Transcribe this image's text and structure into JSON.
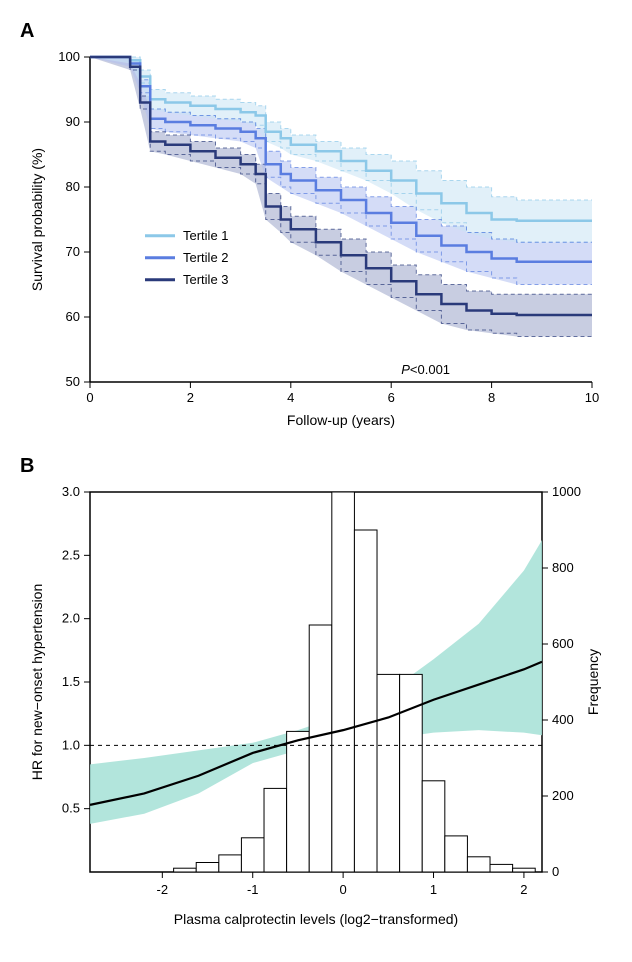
{
  "panelA": {
    "label": "A",
    "type": "survival-curve",
    "xlabel": "Follow-up (years)",
    "ylabel": "Survival probability (%)",
    "xlim": [
      0,
      10
    ],
    "ylim": [
      50,
      100
    ],
    "xticks": [
      0,
      2,
      4,
      6,
      8,
      10
    ],
    "yticks": [
      50,
      60,
      70,
      80,
      90,
      100
    ],
    "pvalue_text": "P<0.001",
    "legend": [
      {
        "label": "Tertile 1",
        "color": "#8cc8e8"
      },
      {
        "label": "Tertile 2",
        "color": "#5a7de0"
      },
      {
        "label": "Tertile 3",
        "color": "#2a3a7a"
      }
    ],
    "series": [
      {
        "name": "tertile1",
        "color": "#8cc8e8",
        "ci_color": "#c8e4f4",
        "line": [
          [
            0,
            100
          ],
          [
            0.8,
            99.5
          ],
          [
            1.0,
            97
          ],
          [
            1.2,
            93.5
          ],
          [
            1.5,
            93
          ],
          [
            2.0,
            92.5
          ],
          [
            2.5,
            92
          ],
          [
            3.0,
            91.5
          ],
          [
            3.3,
            91
          ],
          [
            3.5,
            88.5
          ],
          [
            3.8,
            87.5
          ],
          [
            4.0,
            86.5
          ],
          [
            4.5,
            85.5
          ],
          [
            5.0,
            84
          ],
          [
            5.5,
            82.5
          ],
          [
            6.0,
            81
          ],
          [
            6.5,
            79
          ],
          [
            7.0,
            77.5
          ],
          [
            7.5,
            76
          ],
          [
            8.0,
            75
          ],
          [
            8.5,
            74.8
          ],
          [
            10,
            74.8
          ]
        ],
        "ci_upper": [
          [
            0,
            100
          ],
          [
            0.8,
            100
          ],
          [
            1.0,
            98
          ],
          [
            1.2,
            95
          ],
          [
            1.5,
            94.5
          ],
          [
            2.0,
            94
          ],
          [
            2.5,
            93.5
          ],
          [
            3.0,
            93
          ],
          [
            3.3,
            92.5
          ],
          [
            3.5,
            90
          ],
          [
            3.8,
            89
          ],
          [
            4.0,
            88
          ],
          [
            4.5,
            87
          ],
          [
            5.0,
            86
          ],
          [
            5.5,
            85
          ],
          [
            6.0,
            84
          ],
          [
            6.5,
            82.5
          ],
          [
            7.0,
            81
          ],
          [
            7.5,
            80
          ],
          [
            8.0,
            78.5
          ],
          [
            8.5,
            78
          ],
          [
            10,
            78
          ]
        ],
        "ci_lower": [
          [
            0,
            100
          ],
          [
            0.8,
            99
          ],
          [
            1.0,
            96
          ],
          [
            1.2,
            92
          ],
          [
            1.5,
            91.5
          ],
          [
            2.0,
            91
          ],
          [
            2.5,
            90.5
          ],
          [
            3.0,
            90
          ],
          [
            3.3,
            89.5
          ],
          [
            3.5,
            87
          ],
          [
            3.8,
            86
          ],
          [
            4.0,
            85
          ],
          [
            4.5,
            84
          ],
          [
            5.0,
            82.5
          ],
          [
            5.5,
            81
          ],
          [
            6.0,
            79
          ],
          [
            6.5,
            76.5
          ],
          [
            7.0,
            74.5
          ],
          [
            7.5,
            73
          ],
          [
            8.0,
            72
          ],
          [
            8.5,
            71.5
          ],
          [
            10,
            71.5
          ]
        ]
      },
      {
        "name": "tertile2",
        "color": "#5a7de0",
        "ci_color": "#b0c0f0",
        "line": [
          [
            0,
            100
          ],
          [
            0.8,
            99
          ],
          [
            1.0,
            95.5
          ],
          [
            1.2,
            90.5
          ],
          [
            1.5,
            90
          ],
          [
            2.0,
            89.5
          ],
          [
            2.5,
            89
          ],
          [
            3.0,
            88.5
          ],
          [
            3.3,
            87.5
          ],
          [
            3.5,
            83.5
          ],
          [
            3.8,
            82
          ],
          [
            4.0,
            81
          ],
          [
            4.5,
            79.5
          ],
          [
            5.0,
            78
          ],
          [
            5.5,
            76
          ],
          [
            6.0,
            74.5
          ],
          [
            6.5,
            72.5
          ],
          [
            7.0,
            71
          ],
          [
            7.5,
            70
          ],
          [
            8.0,
            69
          ],
          [
            8.5,
            68.5
          ],
          [
            10,
            68.5
          ]
        ],
        "ci_upper": [
          [
            0,
            100
          ],
          [
            0.8,
            99.5
          ],
          [
            1.0,
            96.5
          ],
          [
            1.2,
            92
          ],
          [
            1.5,
            91.5
          ],
          [
            2.0,
            91
          ],
          [
            2.5,
            90.5
          ],
          [
            3.0,
            90
          ],
          [
            3.3,
            89
          ],
          [
            3.5,
            85.5
          ],
          [
            3.8,
            84
          ],
          [
            4.0,
            83
          ],
          [
            4.5,
            81.5
          ],
          [
            5.0,
            80
          ],
          [
            5.5,
            78.5
          ],
          [
            6.0,
            77
          ],
          [
            6.5,
            75
          ],
          [
            7.0,
            74
          ],
          [
            7.5,
            73
          ],
          [
            8.0,
            72
          ],
          [
            8.5,
            71.5
          ],
          [
            10,
            71.5
          ]
        ],
        "ci_lower": [
          [
            0,
            100
          ],
          [
            0.8,
            98.5
          ],
          [
            1.0,
            94.5
          ],
          [
            1.2,
            89
          ],
          [
            1.5,
            88.5
          ],
          [
            2.0,
            88
          ],
          [
            2.5,
            87.5
          ],
          [
            3.0,
            87
          ],
          [
            3.3,
            86
          ],
          [
            3.5,
            81.5
          ],
          [
            3.8,
            80
          ],
          [
            4.0,
            79
          ],
          [
            4.5,
            77.5
          ],
          [
            5.0,
            76
          ],
          [
            5.5,
            74
          ],
          [
            6.0,
            72
          ],
          [
            6.5,
            70
          ],
          [
            7.0,
            68.5
          ],
          [
            7.5,
            67
          ],
          [
            8.0,
            66
          ],
          [
            8.5,
            65
          ],
          [
            10,
            65
          ]
        ]
      },
      {
        "name": "tertile3",
        "color": "#2a3a7a",
        "ci_color": "#9aa4c8",
        "line": [
          [
            0,
            100
          ],
          [
            0.8,
            98.5
          ],
          [
            1.0,
            93
          ],
          [
            1.2,
            87
          ],
          [
            1.5,
            86.5
          ],
          [
            2.0,
            85.5
          ],
          [
            2.5,
            84.5
          ],
          [
            3.0,
            83.5
          ],
          [
            3.3,
            82
          ],
          [
            3.5,
            77
          ],
          [
            3.8,
            75
          ],
          [
            4.0,
            73.5
          ],
          [
            4.5,
            71.5
          ],
          [
            5.0,
            69.5
          ],
          [
            5.5,
            67.5
          ],
          [
            6.0,
            65.5
          ],
          [
            6.5,
            63.5
          ],
          [
            7.0,
            62
          ],
          [
            7.5,
            61
          ],
          [
            8.0,
            60.5
          ],
          [
            8.5,
            60.3
          ],
          [
            10,
            60.3
          ]
        ],
        "ci_upper": [
          [
            0,
            100
          ],
          [
            0.8,
            99
          ],
          [
            1.0,
            94
          ],
          [
            1.2,
            88.5
          ],
          [
            1.5,
            88
          ],
          [
            2.0,
            87
          ],
          [
            2.5,
            86
          ],
          [
            3.0,
            85
          ],
          [
            3.3,
            83.5
          ],
          [
            3.5,
            79
          ],
          [
            3.8,
            77
          ],
          [
            4.0,
            75.5
          ],
          [
            4.5,
            73.5
          ],
          [
            5.0,
            72
          ],
          [
            5.5,
            70
          ],
          [
            6.0,
            68
          ],
          [
            6.5,
            66.5
          ],
          [
            7.0,
            65
          ],
          [
            7.5,
            64
          ],
          [
            8.0,
            63.5
          ],
          [
            8.5,
            63.5
          ],
          [
            10,
            63.5
          ]
        ],
        "ci_lower": [
          [
            0,
            100
          ],
          [
            0.8,
            98
          ],
          [
            1.0,
            92
          ],
          [
            1.2,
            85.5
          ],
          [
            1.5,
            85
          ],
          [
            2.0,
            84
          ],
          [
            2.5,
            83
          ],
          [
            3.0,
            82
          ],
          [
            3.3,
            80.5
          ],
          [
            3.5,
            75
          ],
          [
            3.8,
            73
          ],
          [
            4.0,
            71.5
          ],
          [
            4.5,
            69.5
          ],
          [
            5.0,
            67
          ],
          [
            5.5,
            65
          ],
          [
            6.0,
            63
          ],
          [
            6.5,
            61
          ],
          [
            7.0,
            59
          ],
          [
            7.5,
            58
          ],
          [
            8.0,
            57.5
          ],
          [
            8.5,
            57
          ],
          [
            10,
            57
          ]
        ]
      }
    ]
  },
  "panelB": {
    "label": "B",
    "type": "spline-histogram",
    "xlabel": "Plasma calprotectin levels (log2−transformed)",
    "ylabel_left": "HR for new−onset hypertension",
    "ylabel_right": "Frequency",
    "xlim": [
      -2.8,
      2.2
    ],
    "ylim_left": [
      0.0,
      3.0
    ],
    "ylim_right": [
      0,
      1000
    ],
    "xticks": [
      -2,
      -1,
      0,
      1,
      2
    ],
    "yticks_left": [
      0.5,
      1.0,
      1.5,
      2.0,
      2.5,
      3.0
    ],
    "yticks_right": [
      0,
      200,
      400,
      600,
      800,
      1000
    ],
    "ref_hr": 1.0,
    "hr_line": [
      [
        -2.8,
        0.53
      ],
      [
        -2.2,
        0.62
      ],
      [
        -1.6,
        0.76
      ],
      [
        -1.0,
        0.94
      ],
      [
        -0.5,
        1.04
      ],
      [
        0.0,
        1.12
      ],
      [
        0.5,
        1.22
      ],
      [
        1.0,
        1.36
      ],
      [
        1.5,
        1.48
      ],
      [
        2.0,
        1.6
      ],
      [
        2.2,
        1.66
      ]
    ],
    "hr_ci_upper": [
      [
        -2.8,
        0.85
      ],
      [
        -2.2,
        0.9
      ],
      [
        -1.6,
        0.96
      ],
      [
        -1.0,
        1.02
      ],
      [
        -0.5,
        1.12
      ],
      [
        0.0,
        1.24
      ],
      [
        0.5,
        1.42
      ],
      [
        1.0,
        1.68
      ],
      [
        1.5,
        1.96
      ],
      [
        2.0,
        2.38
      ],
      [
        2.2,
        2.62
      ]
    ],
    "hr_ci_lower": [
      [
        -2.8,
        0.38
      ],
      [
        -2.2,
        0.46
      ],
      [
        -1.6,
        0.62
      ],
      [
        -1.0,
        0.86
      ],
      [
        -0.5,
        0.96
      ],
      [
        0.0,
        1.0
      ],
      [
        0.5,
        1.05
      ],
      [
        1.0,
        1.1
      ],
      [
        1.5,
        1.12
      ],
      [
        2.0,
        1.1
      ],
      [
        2.2,
        1.08
      ]
    ],
    "hr_color": "#000000",
    "ci_color": "#a5e0d6",
    "histogram": {
      "bin_width": 0.25,
      "bar_color": "#ffffff",
      "bar_border": "#000000",
      "bars": [
        [
          -1.75,
          10
        ],
        [
          -1.5,
          25
        ],
        [
          -1.25,
          45
        ],
        [
          -1.0,
          90
        ],
        [
          -0.75,
          220
        ],
        [
          -0.5,
          370
        ],
        [
          -0.25,
          650
        ],
        [
          0.0,
          1000
        ],
        [
          0.25,
          900
        ],
        [
          0.5,
          520
        ],
        [
          0.75,
          520
        ],
        [
          1.0,
          240
        ],
        [
          1.25,
          95
        ],
        [
          1.5,
          40
        ],
        [
          1.75,
          20
        ],
        [
          2.0,
          10
        ]
      ]
    }
  }
}
